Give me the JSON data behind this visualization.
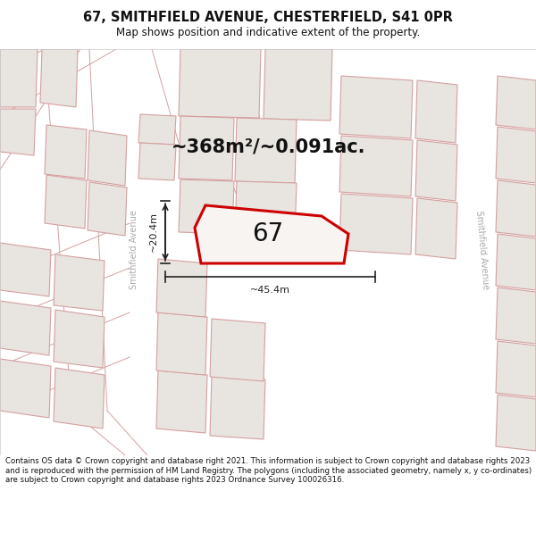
{
  "title": "67, SMITHFIELD AVENUE, CHESTERFIELD, S41 0PR",
  "subtitle": "Map shows position and indicative extent of the property.",
  "area_text": "~368m²/~0.091ac.",
  "property_label": "67",
  "dim_horizontal": "~45.4m",
  "dim_vertical": "~20.4m",
  "street_label": "Smithfield Avenue",
  "street_label_right": "Smithfield Avenue",
  "footer": "Contains OS data © Crown copyright and database right 2021. This information is subject to Crown copyright and database rights 2023 and is reproduced with the permission of HM Land Registry. The polygons (including the associated geometry, namely x, y co-ordinates) are subject to Crown copyright and database rights 2023 Ordnance Survey 100026316.",
  "map_bg": "#f7f4f2",
  "building_fill": "#e8e4e0",
  "building_edge": "#d4a0a0",
  "plot_edge_fill": "#f7f4f2",
  "property_edge": "#cc0000",
  "title_color": "#111111",
  "footer_color": "#111111",
  "dim_color": "#222222",
  "street_color": "#aaaaaa"
}
